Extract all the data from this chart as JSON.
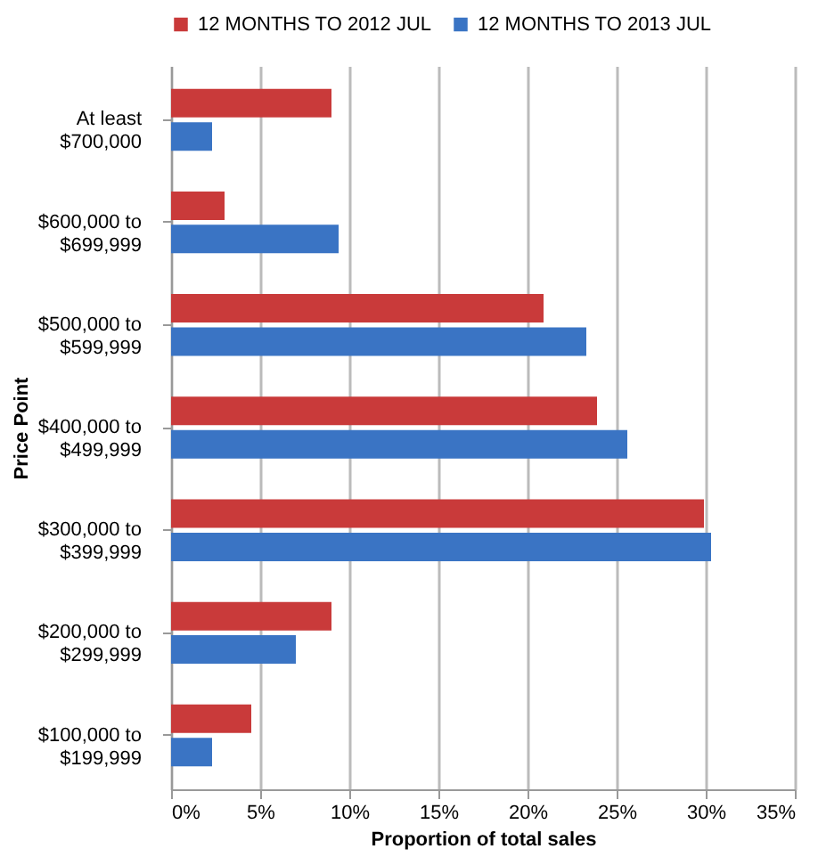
{
  "chart_data": {
    "type": "bar",
    "orientation": "horizontal",
    "xlabel": "Proportion of total sales",
    "ylabel": "Price Point",
    "categories": [
      "At least\n$700,000",
      "$600,000 to\n$699,999",
      "$500,000 to\n$599,999",
      "$400,000 to\n$499,999",
      "$300,000 to\n$399,999",
      "$200,000 to\n$299,999",
      "$100,000 to\n$199,999"
    ],
    "series": [
      {
        "name": "12 MONTHS TO 2012 JUL",
        "color": "#c93a3a",
        "values": [
          9.0,
          3.0,
          20.9,
          23.9,
          29.9,
          9.0,
          4.5
        ]
      },
      {
        "name": "12 MONTHS TO 2013 JUL",
        "color": "#3a74c4",
        "values": [
          2.3,
          9.4,
          23.3,
          25.6,
          30.3,
          7.0,
          2.3
        ]
      }
    ],
    "xlim": [
      0,
      35
    ],
    "xticks": [
      {
        "value": 0,
        "label": "0%"
      },
      {
        "value": 5,
        "label": "5%"
      },
      {
        "value": 10,
        "label": "10%"
      },
      {
        "value": 15,
        "label": "15%"
      },
      {
        "value": 20,
        "label": "20%"
      },
      {
        "value": 25,
        "label": "25%"
      },
      {
        "value": 30,
        "label": "30%"
      },
      {
        "value": 35,
        "label": "35%"
      }
    ],
    "grid": "x",
    "legend": "top"
  }
}
